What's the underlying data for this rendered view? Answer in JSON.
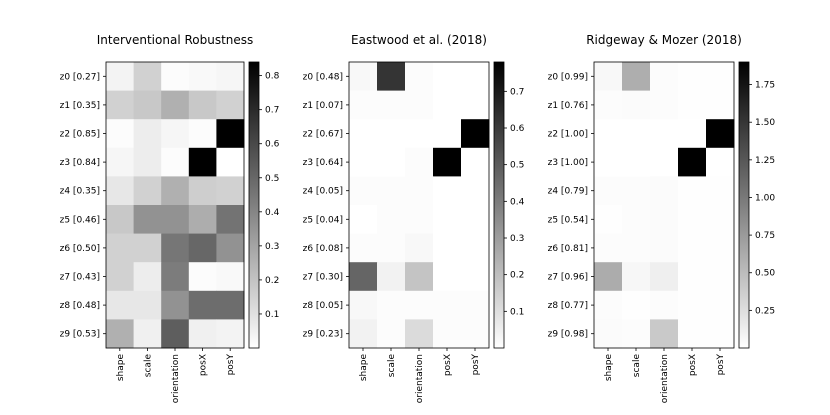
{
  "chart_data": [
    {
      "type": "heatmap",
      "title": "Interventional Robustness",
      "rows": [
        "z0 [0.27]",
        "z1 [0.35]",
        "z2 [0.85]",
        "z3 [0.84]",
        "z4 [0.35]",
        "z5 [0.46]",
        "z6 [0.50]",
        "z7 [0.43]",
        "z8 [0.48]",
        "z9 [0.53]"
      ],
      "cols": [
        "shape",
        "scale",
        "orientation",
        "posX",
        "posY"
      ],
      "values": [
        [
          0.04,
          0.15,
          0.01,
          0.02,
          0.03
        ],
        [
          0.15,
          0.18,
          0.26,
          0.18,
          0.15
        ],
        [
          0.01,
          0.06,
          0.03,
          0.01,
          0.84
        ],
        [
          0.03,
          0.06,
          0.01,
          0.84,
          0.0
        ],
        [
          0.08,
          0.15,
          0.26,
          0.16,
          0.15
        ],
        [
          0.18,
          0.36,
          0.36,
          0.27,
          0.46
        ],
        [
          0.15,
          0.15,
          0.45,
          0.5,
          0.36
        ],
        [
          0.15,
          0.06,
          0.43,
          0.01,
          0.02
        ],
        [
          0.08,
          0.08,
          0.36,
          0.48,
          0.48
        ],
        [
          0.26,
          0.05,
          0.53,
          0.05,
          0.04
        ]
      ],
      "colorbar": {
        "range": [
          0,
          0.84
        ],
        "ticks": [
          "0.1",
          "0.2",
          "0.3",
          "0.4",
          "0.5",
          "0.6",
          "0.7",
          "0.8"
        ],
        "tick_values": [
          0.1,
          0.2,
          0.3,
          0.4,
          0.5,
          0.6,
          0.7,
          0.8
        ]
      }
    },
    {
      "type": "heatmap",
      "title": "Eastwood et al. (2018)",
      "rows": [
        "z0 [0.48]",
        "z1 [0.07]",
        "z2 [0.67]",
        "z3 [0.64]",
        "z4 [0.05]",
        "z5 [0.04]",
        "z6 [0.08]",
        "z7 [0.30]",
        "z8 [0.05]",
        "z9 [0.23]"
      ],
      "cols": [
        "shape",
        "scale",
        "orientation",
        "posX",
        "posY"
      ],
      "values": [
        [
          0.02,
          0.62,
          0.01,
          0.0,
          0.0
        ],
        [
          0.01,
          0.01,
          0.01,
          0.0,
          0.0
        ],
        [
          0.0,
          0.0,
          0.0,
          0.0,
          0.78
        ],
        [
          0.0,
          0.0,
          0.01,
          0.78,
          0.0
        ],
        [
          0.01,
          0.01,
          0.01,
          0.0,
          0.0
        ],
        [
          0.0,
          0.01,
          0.01,
          0.0,
          0.0
        ],
        [
          0.01,
          0.01,
          0.02,
          0.0,
          0.0
        ],
        [
          0.47,
          0.04,
          0.18,
          0.0,
          0.0
        ],
        [
          0.02,
          0.01,
          0.01,
          0.01,
          0.01
        ],
        [
          0.04,
          0.01,
          0.11,
          0.01,
          0.01
        ]
      ],
      "colorbar": {
        "range": [
          0,
          0.78
        ],
        "ticks": [
          "0.1",
          "0.2",
          "0.3",
          "0.4",
          "0.5",
          "0.6",
          "0.7"
        ],
        "tick_values": [
          0.1,
          0.2,
          0.3,
          0.4,
          0.5,
          0.6,
          0.7
        ]
      }
    },
    {
      "type": "heatmap",
      "title": "Ridgeway & Mozer (2018)",
      "rows": [
        "z0 [0.99]",
        "z1 [0.76]",
        "z2 [1.00]",
        "z3 [1.00]",
        "z4 [0.79]",
        "z5 [0.54]",
        "z6 [0.81]",
        "z7 [0.96]",
        "z8 [0.77]",
        "z9 [0.98]"
      ],
      "cols": [
        "shape",
        "scale",
        "orientation",
        "posX",
        "posY"
      ],
      "values": [
        [
          0.05,
          0.6,
          0.02,
          0.01,
          0.01
        ],
        [
          0.02,
          0.03,
          0.02,
          0.01,
          0.01
        ],
        [
          0.0,
          0.0,
          0.0,
          0.0,
          1.9
        ],
        [
          0.0,
          0.0,
          0.0,
          1.9,
          0.0
        ],
        [
          0.02,
          0.02,
          0.03,
          0.01,
          0.01
        ],
        [
          0.01,
          0.02,
          0.03,
          0.01,
          0.01
        ],
        [
          0.02,
          0.02,
          0.03,
          0.01,
          0.01
        ],
        [
          0.62,
          0.06,
          0.12,
          0.01,
          0.01
        ],
        [
          0.02,
          0.01,
          0.02,
          0.01,
          0.01
        ],
        [
          0.03,
          0.02,
          0.4,
          0.01,
          0.01
        ]
      ],
      "colorbar": {
        "range": [
          0,
          1.9
        ],
        "ticks": [
          "0.25",
          "0.50",
          "0.75",
          "1.00",
          "1.25",
          "1.50",
          "1.75"
        ],
        "tick_values": [
          0.25,
          0.5,
          0.75,
          1.0,
          1.25,
          1.5,
          1.75
        ]
      }
    }
  ]
}
